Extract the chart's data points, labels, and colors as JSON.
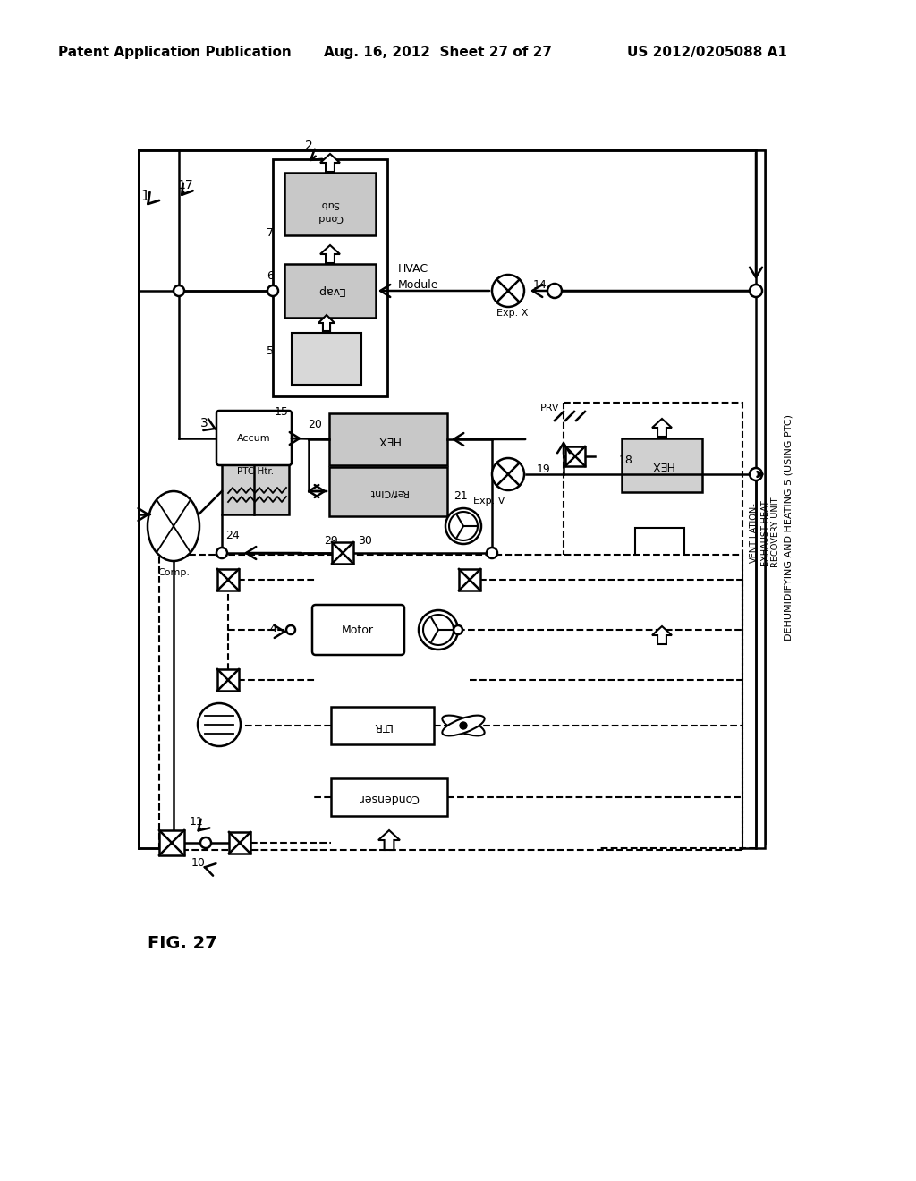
{
  "header_left": "Patent Application Publication",
  "header_center": "Aug. 16, 2012  Sheet 27 of 27",
  "header_right": "US 2012/0205088 A1",
  "fig_label": "FIG. 27",
  "bg_color": "#ffffff"
}
